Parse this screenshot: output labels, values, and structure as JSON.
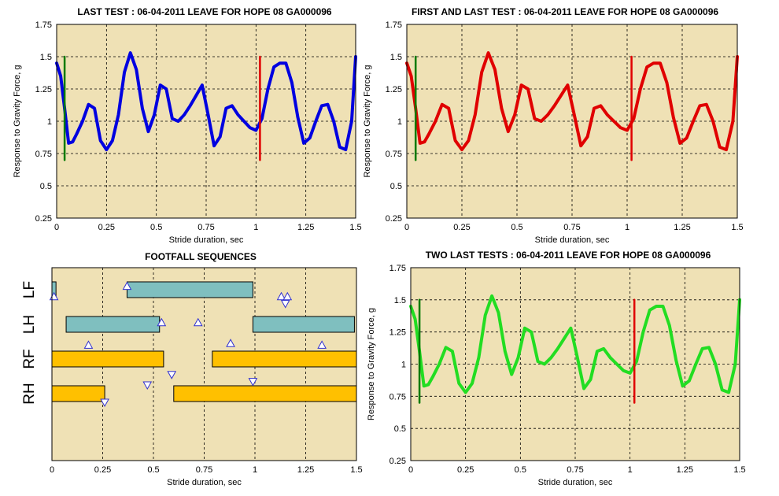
{
  "chart_data": [
    {
      "type": "line",
      "title": "LAST TEST : 06-04-2011 LEAVE FOR HOPE 08 GA000096",
      "xlabel": "Stride duration, sec",
      "ylabel": "Response to Gravity Force, g",
      "xlim": [
        0,
        1.5
      ],
      "ylim": [
        0.25,
        1.75
      ],
      "xticks": [
        "0",
        "0.25",
        "0.5",
        "0.75",
        "1",
        "1.25",
        "1.5"
      ],
      "yticks": [
        "0.25",
        "0.5",
        "0.75",
        "1",
        "1.25",
        "1.5",
        "1.75"
      ],
      "grid": true,
      "background": "#efe1b5",
      "series": [
        {
          "color": "#0000e0",
          "x": [
            0,
            0.02,
            0.04,
            0.06,
            0.08,
            0.1,
            0.13,
            0.16,
            0.19,
            0.22,
            0.25,
            0.28,
            0.31,
            0.34,
            0.37,
            0.4,
            0.43,
            0.46,
            0.49,
            0.52,
            0.55,
            0.58,
            0.61,
            0.64,
            0.67,
            0.7,
            0.73,
            0.76,
            0.79,
            0.82,
            0.85,
            0.88,
            0.91,
            0.94,
            0.97,
            1.0,
            1.03,
            1.06,
            1.09,
            1.12,
            1.15,
            1.18,
            1.21,
            1.24,
            1.27,
            1.3,
            1.33,
            1.36,
            1.39,
            1.42,
            1.45,
            1.48,
            1.5
          ],
          "y": [
            1.45,
            1.35,
            1.1,
            0.83,
            0.84,
            0.9,
            1.0,
            1.13,
            1.1,
            0.85,
            0.78,
            0.85,
            1.05,
            1.38,
            1.53,
            1.4,
            1.1,
            0.92,
            1.05,
            1.28,
            1.25,
            1.02,
            1.0,
            1.05,
            1.12,
            1.2,
            1.28,
            1.05,
            0.81,
            0.88,
            1.1,
            1.12,
            1.05,
            1.0,
            0.95,
            0.93,
            1.02,
            1.25,
            1.42,
            1.45,
            1.45,
            1.3,
            1.03,
            0.83,
            0.87,
            1.0,
            1.12,
            1.13,
            1.0,
            0.8,
            0.78,
            1.0,
            1.5
          ]
        },
        {
          "color": "#007a00",
          "x": [
            0.04,
            0.04
          ],
          "y": [
            0.7,
            1.5
          ]
        },
        {
          "color": "#e00000",
          "x": [
            1.02,
            1.02
          ],
          "y": [
            0.7,
            1.5
          ]
        }
      ]
    },
    {
      "type": "line",
      "title": "FIRST AND LAST TEST : 06-04-2011 LEAVE FOR HOPE 08 GA000096",
      "xlabel": "Stride duration, sec",
      "ylabel": "Response to Gravity Force, g",
      "xlim": [
        0,
        1.5
      ],
      "ylim": [
        0.25,
        1.75
      ],
      "xticks": [
        "0",
        "0.25",
        "0.5",
        "0.75",
        "1",
        "1.25",
        "1.5"
      ],
      "yticks": [
        "0.25",
        "0.5",
        "0.75",
        "1",
        "1.25",
        "1.5",
        "1.75"
      ],
      "grid": true,
      "background": "#efe1b5",
      "series": [
        {
          "color": "#e00000",
          "x": [
            0,
            0.02,
            0.04,
            0.06,
            0.08,
            0.1,
            0.13,
            0.16,
            0.19,
            0.22,
            0.25,
            0.28,
            0.31,
            0.34,
            0.37,
            0.4,
            0.43,
            0.46,
            0.49,
            0.52,
            0.55,
            0.58,
            0.61,
            0.64,
            0.67,
            0.7,
            0.73,
            0.76,
            0.79,
            0.82,
            0.85,
            0.88,
            0.91,
            0.94,
            0.97,
            1.0,
            1.03,
            1.06,
            1.09,
            1.12,
            1.15,
            1.18,
            1.21,
            1.24,
            1.27,
            1.3,
            1.33,
            1.36,
            1.39,
            1.42,
            1.45,
            1.48,
            1.5
          ],
          "y": [
            1.45,
            1.35,
            1.1,
            0.83,
            0.84,
            0.9,
            1.0,
            1.13,
            1.1,
            0.85,
            0.78,
            0.85,
            1.05,
            1.38,
            1.53,
            1.4,
            1.1,
            0.92,
            1.05,
            1.28,
            1.25,
            1.02,
            1.0,
            1.05,
            1.12,
            1.2,
            1.28,
            1.05,
            0.81,
            0.88,
            1.1,
            1.12,
            1.05,
            1.0,
            0.95,
            0.93,
            1.02,
            1.25,
            1.42,
            1.45,
            1.45,
            1.3,
            1.03,
            0.83,
            0.87,
            1.0,
            1.12,
            1.13,
            1.0,
            0.8,
            0.78,
            1.0,
            1.5
          ]
        },
        {
          "color": "#007a00",
          "x": [
            0.04,
            0.04
          ],
          "y": [
            0.7,
            1.5
          ]
        },
        {
          "color": "#e00000",
          "x": [
            1.02,
            1.02
          ],
          "y": [
            0.7,
            1.5
          ]
        }
      ]
    },
    {
      "type": "gantt",
      "title": "FOOTFALL SEQUENCES",
      "xlabel": "Stride duration, sec",
      "xlim": [
        0,
        1.5
      ],
      "xticks": [
        "0",
        "0.25",
        "0.5",
        "0.75",
        "1",
        "1.25",
        "1.5"
      ],
      "grid": true,
      "background": "#efe1b5",
      "rows": [
        {
          "label": "LF",
          "color": "#7fbfbf",
          "bars": [
            [
              0.0,
              0.02
            ],
            [
              0.37,
              0.99
            ]
          ]
        },
        {
          "label": "LH",
          "color": "#7fbfbf",
          "bars": [
            [
              0.07,
              0.53
            ],
            [
              0.99,
              1.49
            ]
          ]
        },
        {
          "label": "RF",
          "color": "#ffc000",
          "bars": [
            [
              0.0,
              0.55
            ],
            [
              0.79,
              1.5
            ]
          ]
        },
        {
          "label": "RH",
          "color": "#ffc000",
          "bars": [
            [
              0.0,
              0.26
            ],
            [
              0.6,
              1.5
            ]
          ]
        }
      ],
      "markers": [
        {
          "shape": "up",
          "x": 0.01,
          "row": 0.2
        },
        {
          "shape": "up",
          "x": 0.37,
          "row": -0.1
        },
        {
          "shape": "up",
          "x": 1.13,
          "row": 0.2
        },
        {
          "shape": "up",
          "x": 1.16,
          "row": 0.2
        },
        {
          "shape": "down",
          "x": 1.15,
          "row": 0.4
        },
        {
          "shape": "up",
          "x": 0.54,
          "row": 0.95
        },
        {
          "shape": "up",
          "x": 0.72,
          "row": 0.95
        },
        {
          "shape": "up",
          "x": 0.18,
          "row": 1.6
        },
        {
          "shape": "up",
          "x": 0.88,
          "row": 1.55
        },
        {
          "shape": "up",
          "x": 1.33,
          "row": 1.6
        },
        {
          "shape": "down",
          "x": 0.59,
          "row": 2.45
        },
        {
          "shape": "down",
          "x": 0.47,
          "row": 2.75
        },
        {
          "shape": "down",
          "x": 0.99,
          "row": 2.65
        },
        {
          "shape": "down",
          "x": 0.26,
          "row": 3.25
        }
      ]
    },
    {
      "type": "line",
      "title": "TWO LAST TESTS : 06-04-2011 LEAVE FOR HOPE 08 GA000096",
      "xlabel": "Stride duration, sec",
      "ylabel": "Response to Gravity Force, g",
      "xlim": [
        0,
        1.5
      ],
      "ylim": [
        0.25,
        1.75
      ],
      "xticks": [
        "0",
        "0.25",
        "0.5",
        "0.75",
        "1",
        "1.25",
        "1.5"
      ],
      "yticks": [
        "0.25",
        "0.5",
        "0.75",
        "1",
        "1.25",
        "1.5",
        "1.75"
      ],
      "grid": true,
      "background": "#efe1b5",
      "series": [
        {
          "color": "#22dd22",
          "x": [
            0,
            0.02,
            0.04,
            0.06,
            0.08,
            0.1,
            0.13,
            0.16,
            0.19,
            0.22,
            0.25,
            0.28,
            0.31,
            0.34,
            0.37,
            0.4,
            0.43,
            0.46,
            0.49,
            0.52,
            0.55,
            0.58,
            0.61,
            0.64,
            0.67,
            0.7,
            0.73,
            0.76,
            0.79,
            0.82,
            0.85,
            0.88,
            0.91,
            0.94,
            0.97,
            1.0,
            1.03,
            1.06,
            1.09,
            1.12,
            1.15,
            1.18,
            1.21,
            1.24,
            1.27,
            1.3,
            1.33,
            1.36,
            1.39,
            1.42,
            1.45,
            1.48,
            1.5
          ],
          "y": [
            1.45,
            1.35,
            1.1,
            0.83,
            0.84,
            0.9,
            1.0,
            1.13,
            1.1,
            0.85,
            0.78,
            0.85,
            1.05,
            1.38,
            1.53,
            1.4,
            1.1,
            0.92,
            1.05,
            1.28,
            1.25,
            1.02,
            1.0,
            1.05,
            1.12,
            1.2,
            1.28,
            1.05,
            0.81,
            0.88,
            1.1,
            1.12,
            1.05,
            1.0,
            0.95,
            0.93,
            1.02,
            1.25,
            1.42,
            1.45,
            1.45,
            1.3,
            1.03,
            0.83,
            0.87,
            1.0,
            1.12,
            1.13,
            1.0,
            0.8,
            0.78,
            1.0,
            1.5
          ]
        },
        {
          "color": "#007a00",
          "x": [
            0.04,
            0.04
          ],
          "y": [
            0.7,
            1.5
          ]
        },
        {
          "color": "#e00000",
          "x": [
            1.02,
            1.02
          ],
          "y": [
            0.7,
            1.5
          ]
        }
      ]
    }
  ]
}
